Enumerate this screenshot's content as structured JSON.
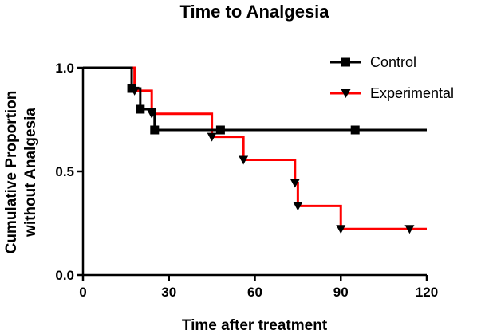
{
  "chart_data": {
    "type": "line",
    "title": "Time to Analgesia",
    "xlabel": "Time after treatment",
    "ylabel_lines": [
      "Cumulative Proportion",
      "without Analgesia"
    ],
    "xlim": [
      0,
      120
    ],
    "ylim": [
      0,
      1
    ],
    "xticks": [
      0,
      30,
      60,
      90,
      120
    ],
    "xtick_labels": [
      "0",
      "30",
      "60",
      "90",
      "120"
    ],
    "yticks": [
      0,
      0.5,
      1
    ],
    "ytick_labels": [
      "0.0",
      "0.5",
      "1.0"
    ],
    "grid": false,
    "legend_position": "top-right",
    "series": [
      {
        "name": "Control",
        "color": "#000000",
        "marker": "square",
        "step_x": [
          0,
          17,
          20,
          25,
          120
        ],
        "step_y": [
          1.0,
          0.9,
          0.8,
          0.7,
          0.7
        ],
        "markers": [
          [
            17,
            0.9
          ],
          [
            20,
            0.8
          ],
          [
            25,
            0.7
          ],
          [
            48,
            0.7
          ],
          [
            95,
            0.7
          ]
        ]
      },
      {
        "name": "Experimental",
        "color": "#ff0000",
        "marker": "triangle-down",
        "step_x": [
          0,
          18,
          24,
          45,
          56,
          74,
          75,
          90,
          120
        ],
        "step_y": [
          1.0,
          0.889,
          0.778,
          0.667,
          0.556,
          0.444,
          0.333,
          0.222,
          0.222
        ],
        "markers": [
          [
            18,
            0.889
          ],
          [
            24,
            0.778
          ],
          [
            45,
            0.667
          ],
          [
            56,
            0.556
          ],
          [
            74,
            0.444
          ],
          [
            75,
            0.333
          ],
          [
            90,
            0.222
          ],
          [
            114,
            0.222
          ]
        ]
      }
    ]
  }
}
